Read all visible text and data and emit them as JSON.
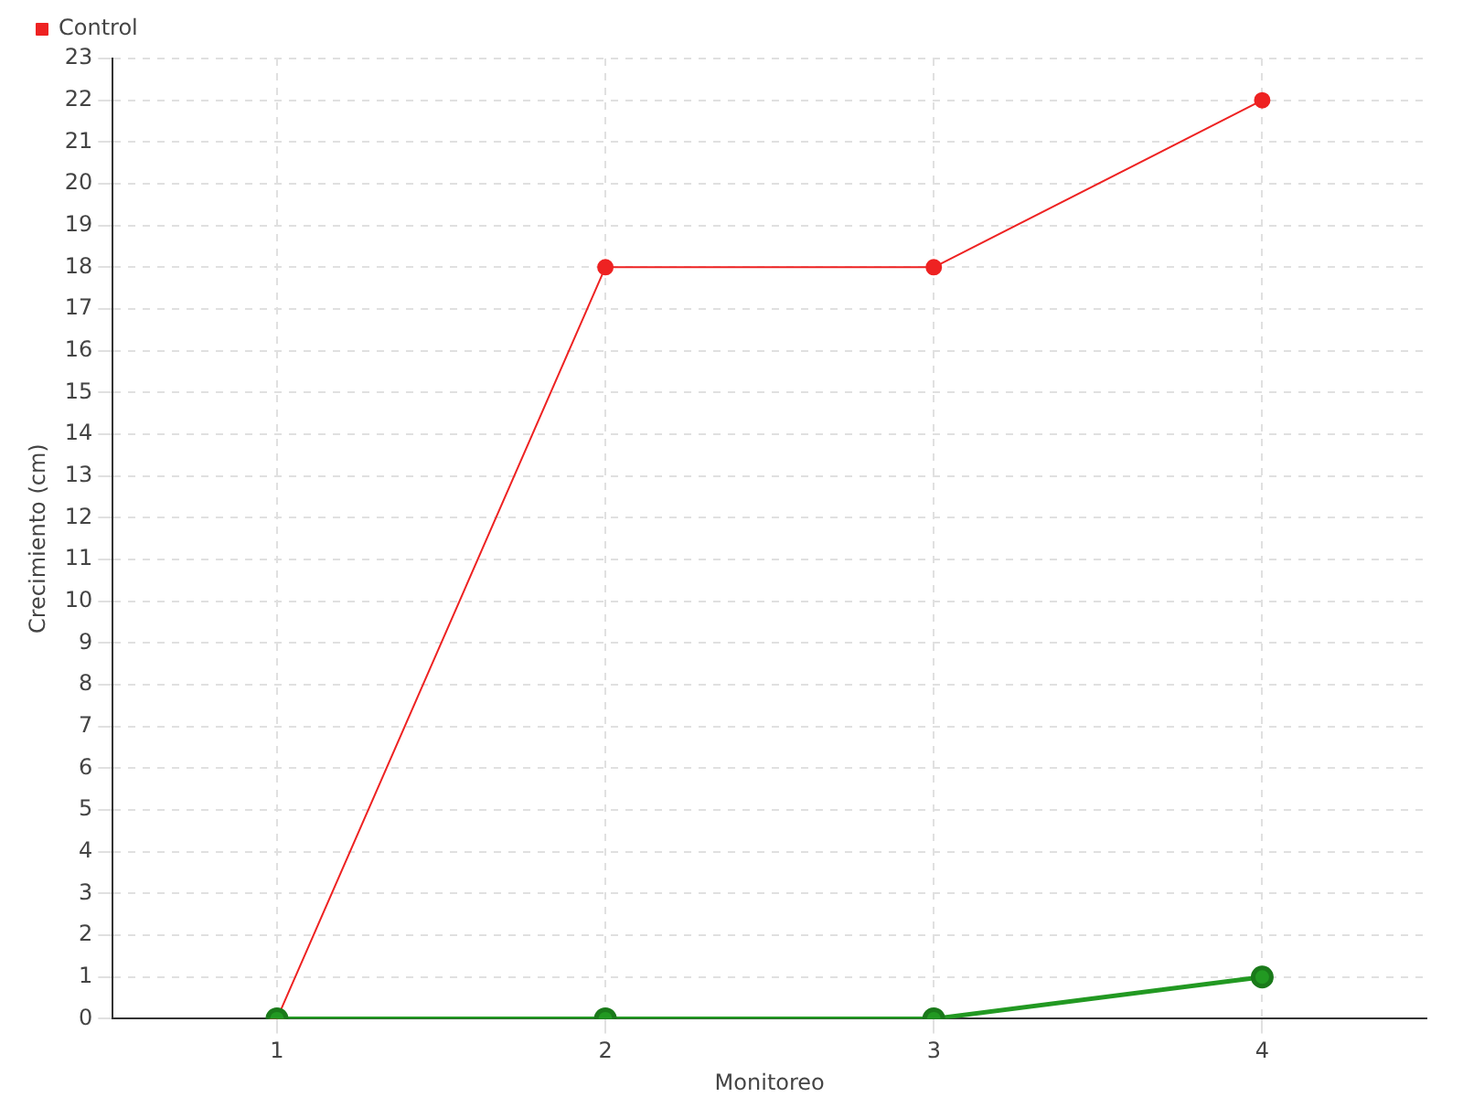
{
  "chart_data": {
    "type": "line",
    "xlabel": "Monitoreo",
    "ylabel": "Crecimiento (cm)",
    "x": [
      1,
      2,
      3,
      4
    ],
    "series": [
      {
        "color": "#229922",
        "values": [
          0,
          0,
          0,
          1
        ]
      },
      {
        "name": "Control",
        "color": "#ee2222",
        "values": [
          0,
          18,
          18,
          22
        ]
      }
    ],
    "xlim": [
      0.5,
      4.5
    ],
    "xticks": [
      1,
      2,
      3,
      4
    ],
    "ylim": [
      0,
      23
    ],
    "yticks": [
      0,
      1,
      2,
      3,
      4,
      5,
      6,
      7,
      8,
      9,
      10,
      11,
      12,
      13,
      14,
      15,
      16,
      17,
      18,
      19,
      20,
      21,
      22,
      23
    ],
    "grid": true,
    "legend": "top left",
    "marker": "circle",
    "line_style": "solid"
  }
}
